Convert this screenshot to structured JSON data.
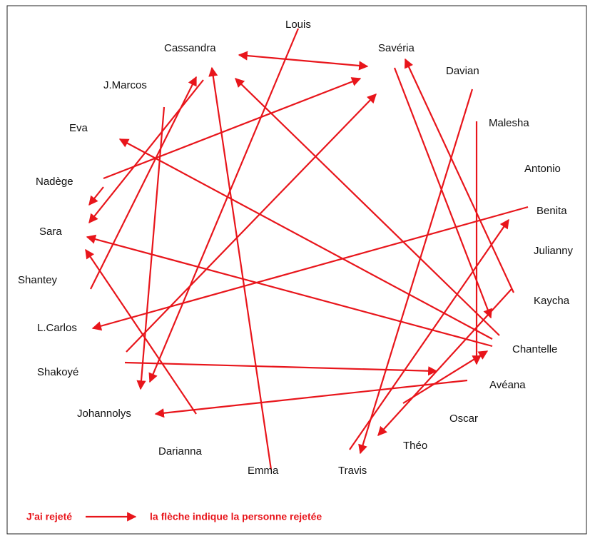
{
  "nodes": [
    {
      "label": "Louis"
    },
    {
      "label": "Cassandra"
    },
    {
      "label": "Savéria"
    },
    {
      "label": "Davian"
    },
    {
      "label": "J.Marcos"
    },
    {
      "label": "Malesha"
    },
    {
      "label": "Eva"
    },
    {
      "label": "Antonio"
    },
    {
      "label": "Nadège"
    },
    {
      "label": "Benita"
    },
    {
      "label": "Sara"
    },
    {
      "label": "Julianny"
    },
    {
      "label": "Shantey"
    },
    {
      "label": "Kaycha"
    },
    {
      "label": "L.Carlos"
    },
    {
      "label": "Chantelle"
    },
    {
      "label": "Shakoyé"
    },
    {
      "label": "Avéana"
    },
    {
      "label": "Johannolys"
    },
    {
      "label": "Oscar"
    },
    {
      "label": "Théo"
    },
    {
      "label": "Darianna"
    },
    {
      "label": "Emma"
    },
    {
      "label": "Travis"
    }
  ],
  "legend": {
    "left": "J'ai rejeté",
    "right": "la flèche indique la personne rejetée"
  }
}
